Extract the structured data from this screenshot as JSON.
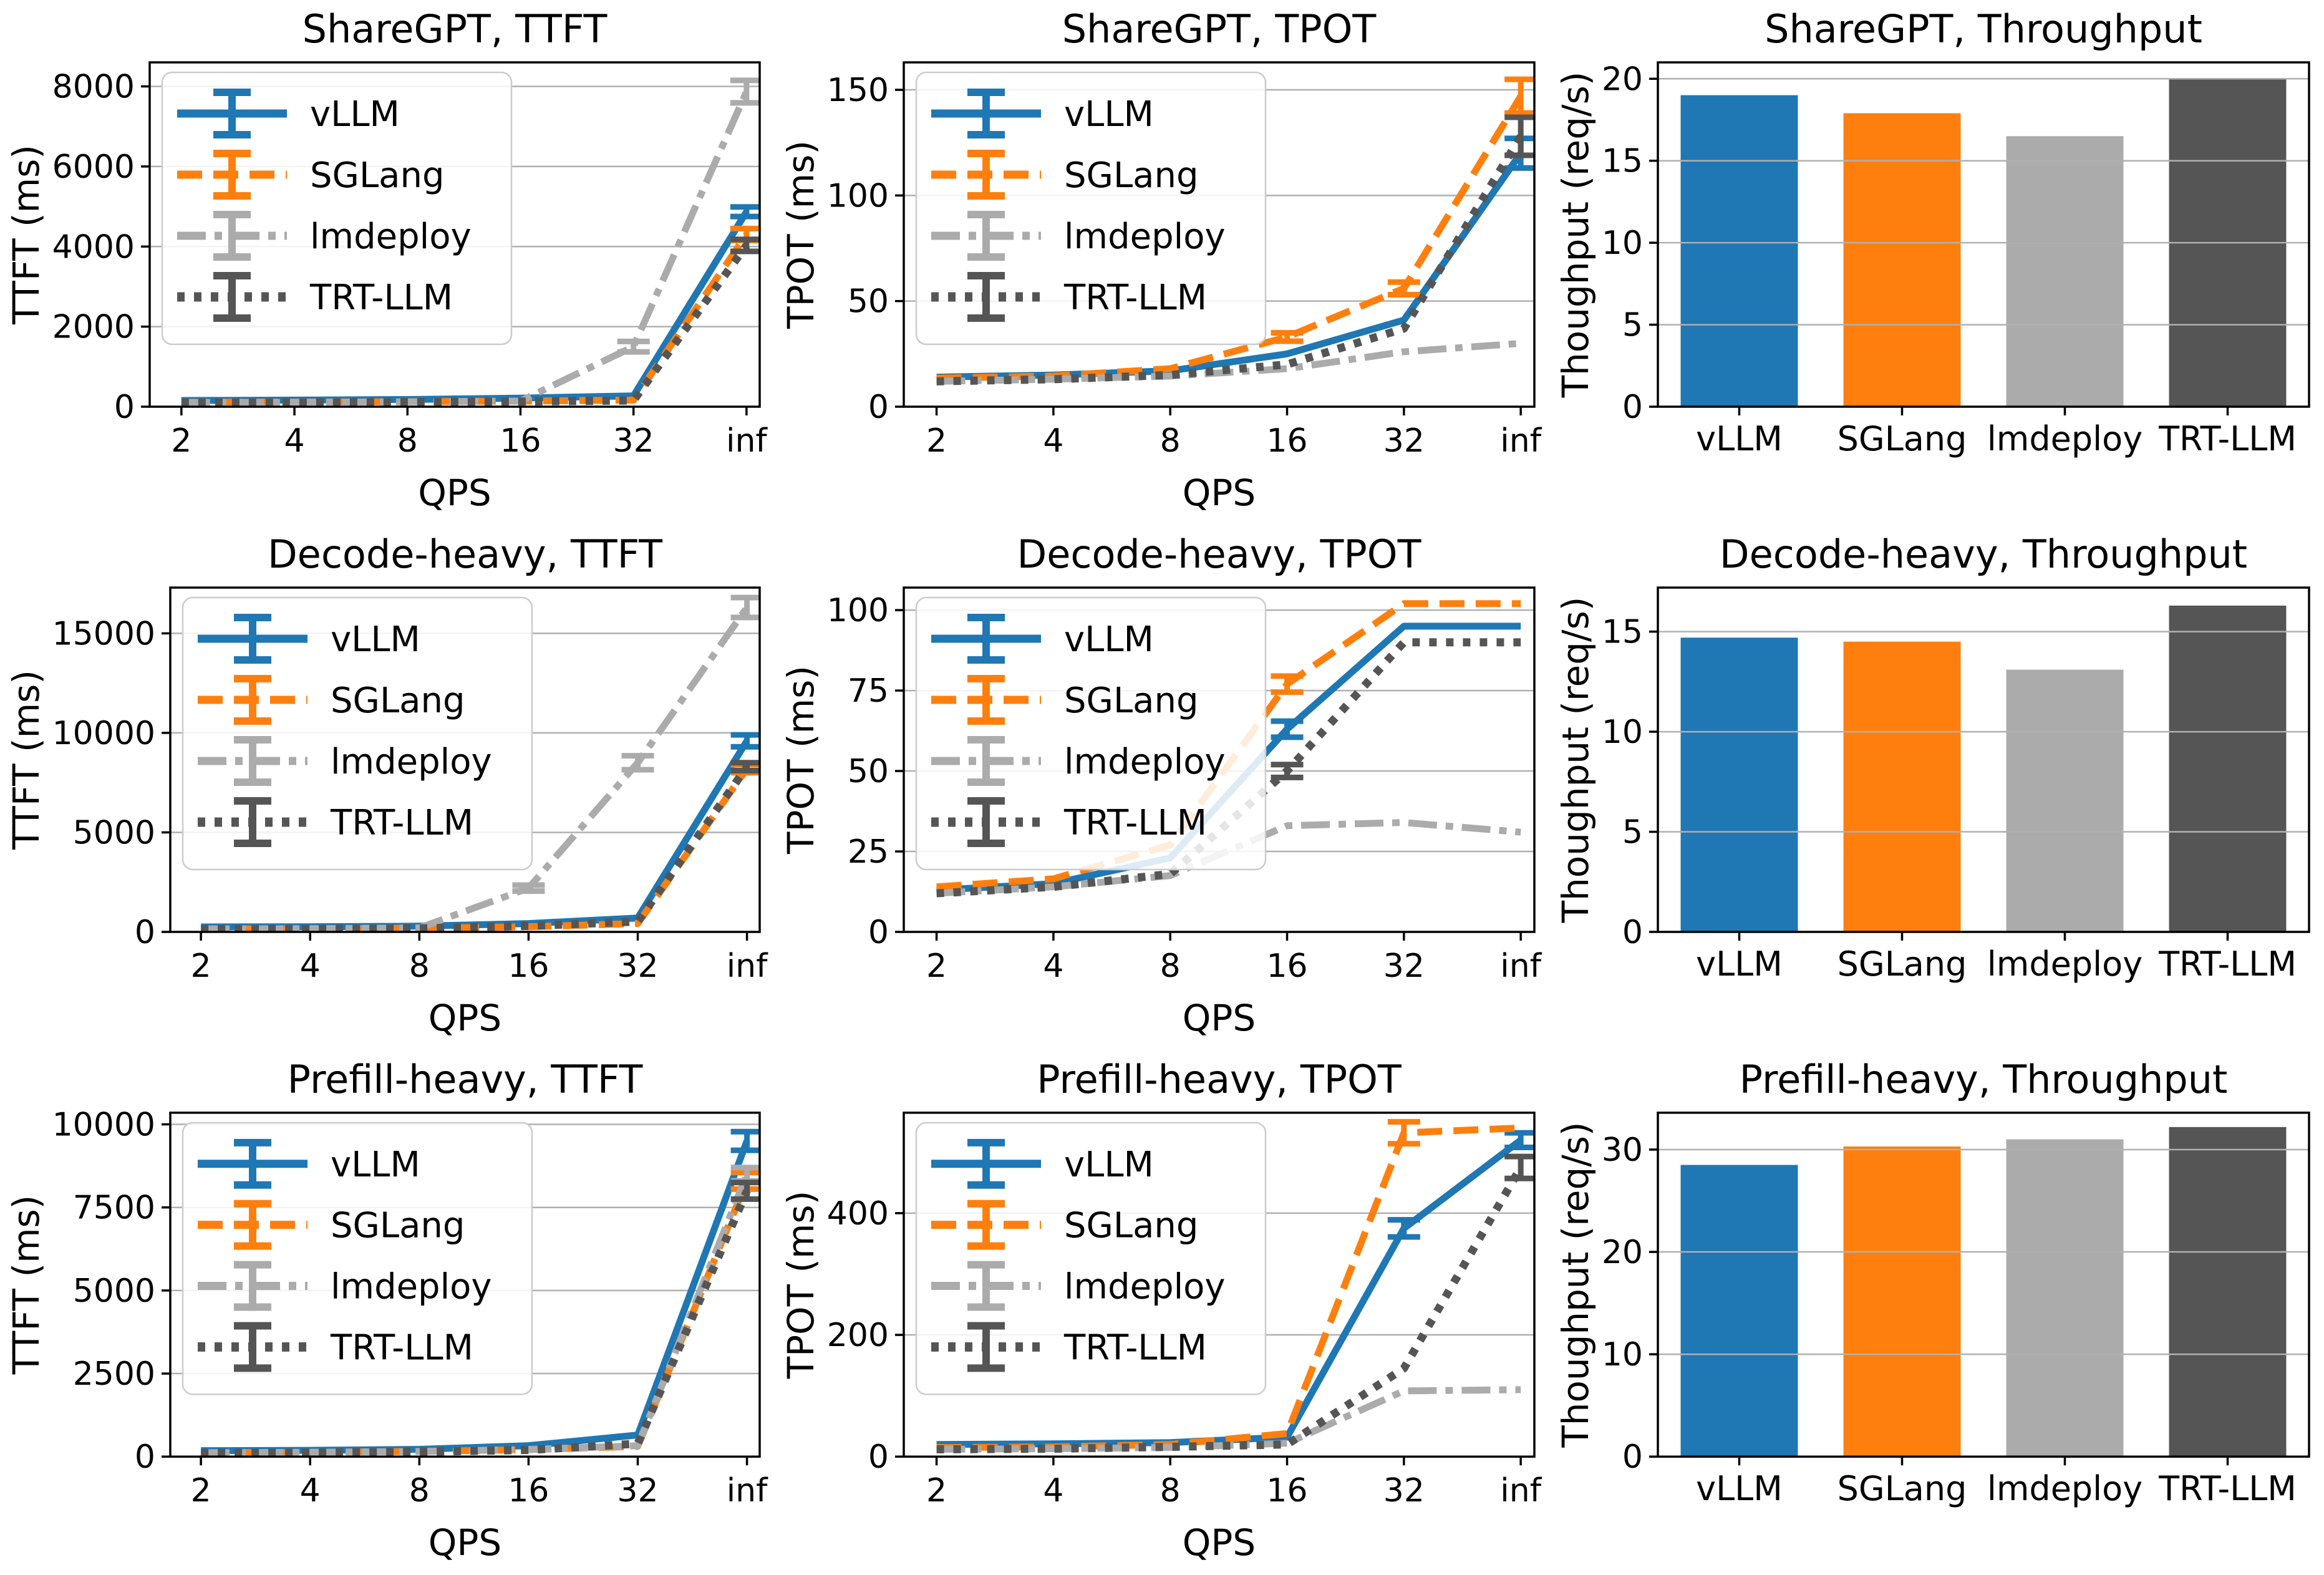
{
  "page": {
    "background": "#ffffff"
  },
  "colors": {
    "vLLM": "#1f77b4",
    "SGLang": "#ff7f0e",
    "lmdeploy": "#ababab",
    "TRT-LLM": "#555555"
  },
  "style": {
    "grid_color": "#b0b0b0",
    "spine_color": "#000000",
    "legend_border_color": "#cccccc"
  },
  "line_styles": {
    "vLLM": "solid",
    "SGLang": "dashed",
    "lmdeploy": "dashdot",
    "TRT-LLM": "dotted"
  },
  "legend_labels": [
    "vLLM",
    "SGLang",
    "lmdeploy",
    "TRT-LLM"
  ],
  "chart_data": [
    {
      "id": "sharegpt-ttft",
      "type": "line",
      "title": "ShareGPT, TTFT",
      "xlabel": "QPS",
      "ylabel": "TTFT (ms)",
      "xticklabels": [
        "2",
        "4",
        "8",
        "16",
        "32",
        "inf"
      ],
      "yticks": [
        0,
        2000,
        4000,
        6000,
        8000
      ],
      "ylim": [
        0,
        8600
      ],
      "legend": true,
      "grid": true,
      "series": [
        {
          "name": "vLLM",
          "values": [
            155,
            165,
            180,
            215,
            270,
            4870
          ],
          "errors": [
            0,
            0,
            0,
            0,
            0,
            120
          ]
        },
        {
          "name": "SGLang",
          "values": [
            110,
            115,
            125,
            140,
            165,
            4300
          ],
          "errors": [
            0,
            0,
            0,
            0,
            0,
            150
          ]
        },
        {
          "name": "lmdeploy",
          "values": [
            105,
            110,
            120,
            140,
            1500,
            7870
          ],
          "errors": [
            0,
            0,
            0,
            0,
            130,
            280
          ]
        },
        {
          "name": "TRT-LLM",
          "values": [
            100,
            105,
            115,
            130,
            155,
            4030
          ],
          "errors": [
            0,
            0,
            0,
            0,
            0,
            150
          ]
        }
      ]
    },
    {
      "id": "sharegpt-tpot",
      "type": "line",
      "title": "ShareGPT, TPOT",
      "xlabel": "QPS",
      "ylabel": "TPOT (ms)",
      "xticklabels": [
        "2",
        "4",
        "8",
        "16",
        "32",
        "inf"
      ],
      "yticks": [
        0,
        50,
        100,
        150
      ],
      "ylim": [
        0,
        163
      ],
      "legend": true,
      "grid": true,
      "series": [
        {
          "name": "vLLM",
          "values": [
            14,
            15,
            17,
            25,
            41,
            120
          ],
          "errors": [
            0,
            0,
            0,
            0,
            0,
            7
          ]
        },
        {
          "name": "SGLang",
          "values": [
            13.5,
            14.5,
            18,
            33,
            56,
            147
          ],
          "errors": [
            0,
            0,
            0,
            2,
            3,
            8
          ]
        },
        {
          "name": "lmdeploy",
          "values": [
            12,
            13,
            14.5,
            18,
            26,
            30
          ],
          "errors": [
            0,
            0,
            0,
            0,
            0,
            0
          ]
        },
        {
          "name": "TRT-LLM",
          "values": [
            12,
            13,
            15,
            20,
            37,
            128
          ],
          "errors": [
            0,
            0,
            0,
            0,
            0,
            9
          ]
        }
      ]
    },
    {
      "id": "sharegpt-throughput",
      "type": "bar",
      "title": "ShareGPT, Throughput",
      "ylabel": "Thoughput (req/s)",
      "categories": [
        "vLLM",
        "SGLang",
        "lmdeploy",
        "TRT-LLM"
      ],
      "values": [
        19.0,
        17.9,
        16.5,
        20.0
      ],
      "yticks": [
        0,
        5,
        10,
        15,
        20
      ],
      "ylim": [
        0,
        21
      ],
      "grid": true
    },
    {
      "id": "decode-heavy-ttft",
      "type": "line",
      "title": "Decode-heavy, TTFT",
      "xlabel": "QPS",
      "ylabel": "TTFT (ms)",
      "xticklabels": [
        "2",
        "4",
        "8",
        "16",
        "32",
        "inf"
      ],
      "yticks": [
        0,
        5000,
        10000,
        15000
      ],
      "ylim": [
        0,
        17300
      ],
      "legend": true,
      "grid": true,
      "series": [
        {
          "name": "vLLM",
          "values": [
            250,
            260,
            290,
            420,
            700,
            9600
          ],
          "errors": [
            0,
            0,
            0,
            0,
            0,
            300
          ]
        },
        {
          "name": "SGLang",
          "values": [
            150,
            160,
            185,
            260,
            420,
            8200
          ],
          "errors": [
            0,
            0,
            0,
            0,
            0,
            200
          ]
        },
        {
          "name": "lmdeploy",
          "values": [
            150,
            160,
            200,
            2200,
            8500,
            16300
          ],
          "errors": [
            0,
            0,
            0,
            150,
            350,
            500
          ]
        },
        {
          "name": "TRT-LLM",
          "values": [
            140,
            150,
            175,
            300,
            520,
            8300
          ],
          "errors": [
            0,
            0,
            0,
            0,
            0,
            200
          ]
        }
      ]
    },
    {
      "id": "decode-heavy-tpot",
      "type": "line",
      "title": "Decode-heavy, TPOT",
      "xlabel": "QPS",
      "ylabel": "TPOT (ms)",
      "xticklabels": [
        "2",
        "4",
        "8",
        "16",
        "32",
        "inf"
      ],
      "yticks": [
        0,
        25,
        50,
        75,
        100
      ],
      "ylim": [
        0,
        107
      ],
      "legend": true,
      "grid": true,
      "series": [
        {
          "name": "vLLM",
          "values": [
            13,
            15,
            23,
            63,
            95,
            95
          ],
          "errors": [
            0,
            0,
            0,
            2.5,
            0,
            0
          ]
        },
        {
          "name": "SGLang",
          "values": [
            14,
            16.5,
            27,
            77,
            102,
            102
          ],
          "errors": [
            0,
            0,
            0,
            2.5,
            0,
            0
          ]
        },
        {
          "name": "lmdeploy",
          "values": [
            12,
            14,
            17.5,
            33,
            34,
            31
          ],
          "errors": [
            0,
            0,
            0,
            0,
            0,
            0
          ]
        },
        {
          "name": "TRT-LLM",
          "values": [
            12,
            14,
            18,
            50,
            90,
            90
          ],
          "errors": [
            0,
            0,
            0,
            2,
            0,
            0
          ]
        }
      ]
    },
    {
      "id": "decode-heavy-throughput",
      "type": "bar",
      "title": "Decode-heavy, Throughput",
      "ylabel": "Thoughput (req/s)",
      "categories": [
        "vLLM",
        "SGLang",
        "lmdeploy",
        "TRT-LLM"
      ],
      "values": [
        14.7,
        14.5,
        13.1,
        16.3
      ],
      "yticks": [
        0,
        5,
        10,
        15
      ],
      "ylim": [
        0,
        17.2
      ],
      "grid": true
    },
    {
      "id": "prefill-heavy-ttft",
      "type": "line",
      "title": "Prefill-heavy, TTFT",
      "xlabel": "QPS",
      "ylabel": "TTFT (ms)",
      "xticklabels": [
        "2",
        "4",
        "8",
        "16",
        "32",
        "inf"
      ],
      "yticks": [
        0,
        2500,
        5000,
        7500,
        10000
      ],
      "ylim": [
        0,
        10350
      ],
      "legend": true,
      "grid": true,
      "series": [
        {
          "name": "vLLM",
          "values": [
            180,
            190,
            220,
            330,
            650,
            9500
          ],
          "errors": [
            0,
            0,
            0,
            0,
            0,
            280
          ]
        },
        {
          "name": "SGLang",
          "values": [
            120,
            130,
            155,
            210,
            310,
            8300
          ],
          "errors": [
            0,
            0,
            0,
            0,
            0,
            250
          ]
        },
        {
          "name": "lmdeploy",
          "values": [
            120,
            130,
            155,
            215,
            330,
            8500
          ],
          "errors": [
            0,
            0,
            0,
            0,
            0,
            200
          ]
        },
        {
          "name": "TRT-LLM",
          "values": [
            110,
            120,
            145,
            200,
            390,
            8000
          ],
          "errors": [
            0,
            0,
            0,
            0,
            0,
            250
          ]
        }
      ]
    },
    {
      "id": "prefill-heavy-tpot",
      "type": "line",
      "title": "Prefill-heavy, TPOT",
      "xlabel": "QPS",
      "ylabel": "TPOT (ms)",
      "xticklabels": [
        "2",
        "4",
        "8",
        "16",
        "32",
        "inf"
      ],
      "yticks": [
        0,
        200,
        400
      ],
      "ylim": [
        0,
        565
      ],
      "legend": true,
      "grid": true,
      "series": [
        {
          "name": "vLLM",
          "values": [
            20,
            21,
            23,
            32,
            375,
            520
          ],
          "errors": [
            0,
            0,
            0,
            0,
            14,
            12
          ]
        },
        {
          "name": "SGLang",
          "values": [
            15,
            16,
            20,
            38,
            532,
            540
          ],
          "errors": [
            0,
            0,
            0,
            0,
            18,
            0
          ]
        },
        {
          "name": "lmdeploy",
          "values": [
            12,
            13,
            15,
            22,
            108,
            110
          ],
          "errors": [
            0,
            0,
            0,
            0,
            0,
            0
          ]
        },
        {
          "name": "TRT-LLM",
          "values": [
            12,
            13,
            16,
            20,
            145,
            475
          ],
          "errors": [
            0,
            0,
            0,
            0,
            0,
            18
          ]
        }
      ]
    },
    {
      "id": "prefill-heavy-throughput",
      "type": "bar",
      "title": "Prefill-heavy, Throughput",
      "ylabel": "Thoughput (req/s)",
      "categories": [
        "vLLM",
        "SGLang",
        "lmdeploy",
        "TRT-LLM"
      ],
      "values": [
        28.5,
        30.3,
        31.0,
        32.2
      ],
      "yticks": [
        0,
        10,
        20,
        30
      ],
      "ylim": [
        0,
        33.6
      ],
      "grid": true
    }
  ]
}
